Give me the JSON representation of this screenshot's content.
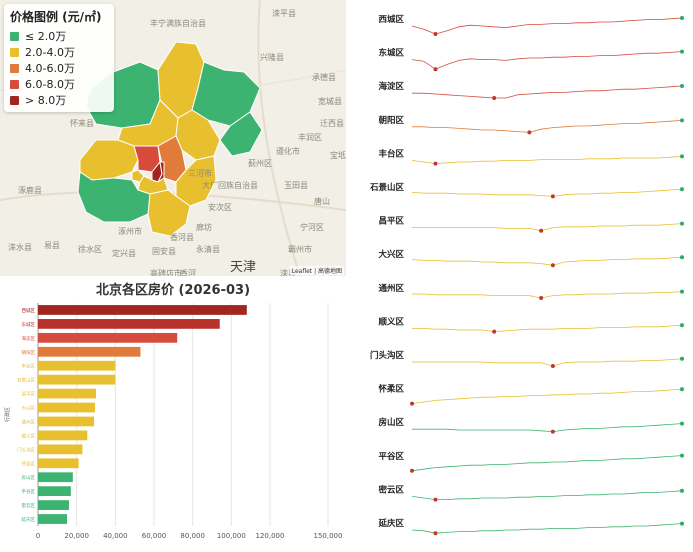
{
  "map": {
    "legend_title": "价格图例 (元/㎡)",
    "legend": [
      {
        "label": "≤ 2.0万",
        "color": "#3cb371"
      },
      {
        "label": "2.0-4.0万",
        "color": "#e8c02f"
      },
      {
        "label": "4.0-6.0万",
        "color": "#e07b39"
      },
      {
        "label": "6.0-8.0万",
        "color": "#d64b3c"
      },
      {
        "label": "> 8.0万",
        "color": "#a0261f"
      }
    ],
    "place_labels": [
      "丰宁满族自治县",
      "滦平县",
      "兴隆县",
      "承德县",
      "宽城县",
      "怀来县",
      "涿鹿县",
      "蓟州区",
      "遵化市",
      "玉田县",
      "三河市",
      "大厂回族自治县",
      "香河县",
      "廊坊",
      "天津",
      "宝坻区",
      "固安县",
      "永清县",
      "涿州市",
      "易县",
      "涞水县",
      "霸州市",
      "安次区",
      "宁河区",
      "迁西县",
      "唐山",
      "丰润区",
      "徐水区",
      "定兴县",
      "高碑店市",
      "香河",
      "滦县"
    ],
    "attribution": "Leaflet | 高德地图"
  },
  "chart_data": [
    {
      "type": "bar",
      "title": "北京各区房价 (2026-03)",
      "ylabel": "行政区",
      "xlabel": "",
      "xlim": [
        0,
        150000
      ],
      "xticks": [
        0,
        20000,
        40000,
        60000,
        80000,
        100000,
        120000,
        150000
      ],
      "xtick_labels": [
        "0",
        "20,000",
        "40,000",
        "60,000",
        "80,000",
        "100,000",
        "120,000",
        "150,000"
      ],
      "categories": [
        "西城区",
        "东城区",
        "海淀区",
        "朝阳区",
        "丰台区",
        "石景山区",
        "昌平区",
        "大兴区",
        "通州区",
        "顺义区",
        "门头沟区",
        "怀柔区",
        "房山区",
        "平谷区",
        "密云区",
        "延庆区"
      ],
      "values": [
        108000,
        94000,
        72000,
        53000,
        40000,
        40000,
        30000,
        29500,
        29000,
        25500,
        23000,
        21000,
        18000,
        17000,
        16000,
        15000
      ],
      "colors": [
        "#a0261f",
        "#b8322a",
        "#d64b3c",
        "#e07b39",
        "#e8c02f",
        "#e8c02f",
        "#e8c02f",
        "#e8c02f",
        "#e8c02f",
        "#e8c02f",
        "#e8c02f",
        "#e8c02f",
        "#3cb371",
        "#3cb371",
        "#3cb371",
        "#3cb371"
      ]
    },
    {
      "type": "line",
      "title": "",
      "series": [
        {
          "name": "西城区",
          "color": "#d64b3c",
          "values": [
            50,
            46,
            40,
            44,
            49,
            51,
            50,
            49,
            48,
            50,
            52,
            52,
            53,
            53,
            54,
            54,
            55,
            55,
            56,
            57,
            58,
            58,
            59,
            60
          ]
        },
        {
          "name": "东城区",
          "color": "#d64b3c",
          "values": [
            50,
            48,
            38,
            44,
            49,
            51,
            50,
            50,
            49,
            51,
            52,
            52,
            53,
            53,
            54,
            54,
            55,
            55,
            56,
            57,
            58,
            58,
            59,
            60
          ]
        },
        {
          "name": "海淀区",
          "color": "#d64b3c",
          "values": [
            50,
            50,
            49,
            48,
            47,
            46,
            45,
            44,
            44,
            48,
            49,
            50,
            51,
            51,
            52,
            53,
            53,
            54,
            55,
            55,
            56,
            57,
            58,
            59
          ]
        },
        {
          "name": "朝阳区",
          "color": "#e07b39",
          "values": [
            50,
            50,
            49,
            49,
            48,
            47,
            46,
            46,
            45,
            44,
            43,
            47,
            49,
            50,
            51,
            51,
            52,
            53,
            54,
            54,
            55,
            56,
            57,
            58
          ]
        },
        {
          "name": "丰台区",
          "color": "#e8c02f",
          "values": [
            50,
            48,
            46,
            47,
            48,
            48,
            49,
            49,
            50,
            50,
            50,
            51,
            51,
            51,
            51,
            52,
            52,
            52,
            53,
            53,
            53,
            53,
            54,
            55
          ]
        },
        {
          "name": "石景山区",
          "color": "#e8c02f",
          "values": [
            52,
            51,
            51,
            51,
            50,
            50,
            50,
            49,
            49,
            49,
            49,
            48,
            47,
            49,
            50,
            50,
            51,
            51,
            52,
            52,
            53,
            54,
            55,
            56
          ]
        },
        {
          "name": "昌平区",
          "color": "#e8c02f",
          "values": [
            50,
            50,
            50,
            50,
            50,
            50,
            50,
            50,
            49,
            49,
            49,
            46,
            50,
            51,
            51,
            51,
            52,
            52,
            52,
            53,
            53,
            53,
            54,
            55
          ]
        },
        {
          "name": "大兴区",
          "color": "#e8c02f",
          "values": [
            52,
            51,
            51,
            50,
            50,
            50,
            49,
            49,
            48,
            48,
            48,
            47,
            45,
            49,
            50,
            51,
            51,
            52,
            52,
            53,
            53,
            53,
            54,
            55
          ]
        },
        {
          "name": "通州区",
          "color": "#e8c02f",
          "values": [
            51,
            51,
            50,
            50,
            50,
            50,
            50,
            49,
            49,
            49,
            49,
            46,
            49,
            50,
            50,
            51,
            51,
            51,
            52,
            52,
            52,
            53,
            53,
            54
          ]
        },
        {
          "name": "顺义区",
          "color": "#e8c02f",
          "values": [
            50,
            50,
            49,
            49,
            48,
            48,
            48,
            46,
            47,
            48,
            49,
            49,
            49,
            50,
            50,
            50,
            51,
            51,
            51,
            52,
            52,
            52,
            53,
            54
          ]
        },
        {
          "name": "门头沟区",
          "color": "#e8c02f",
          "values": [
            50,
            50,
            50,
            50,
            50,
            50,
            50,
            49,
            49,
            49,
            49,
            49,
            45,
            49,
            50,
            50,
            50,
            51,
            51,
            51,
            52,
            52,
            53,
            54
          ]
        },
        {
          "name": "怀柔区",
          "color": "#e8c02f",
          "values": [
            40,
            42,
            44,
            45,
            46,
            47,
            48,
            48,
            49,
            49,
            50,
            50,
            51,
            51,
            52,
            52,
            53,
            53,
            54,
            55,
            55,
            56,
            57,
            58
          ]
        },
        {
          "name": "房山区",
          "color": "#3cb371",
          "values": [
            50,
            50,
            50,
            50,
            49,
            49,
            49,
            49,
            49,
            49,
            49,
            48,
            47,
            49,
            50,
            51,
            51,
            52,
            53,
            53,
            54,
            55,
            56,
            57
          ]
        },
        {
          "name": "平谷区",
          "color": "#3cb371",
          "values": [
            40,
            42,
            44,
            45,
            46,
            47,
            47,
            48,
            48,
            49,
            50,
            50,
            51,
            51,
            52,
            53,
            53,
            54,
            55,
            55,
            56,
            57,
            58,
            59
          ]
        },
        {
          "name": "密云区",
          "color": "#3cb371",
          "values": [
            50,
            48,
            46,
            46,
            47,
            47,
            48,
            48,
            48,
            49,
            49,
            50,
            50,
            51,
            51,
            52,
            52,
            53,
            53,
            54,
            55,
            55,
            56,
            57
          ]
        },
        {
          "name": "延庆区",
          "color": "#3cb371",
          "values": [
            50,
            49,
            46,
            47,
            48,
            48,
            49,
            49,
            50,
            50,
            51,
            51,
            52,
            52,
            52,
            53,
            53,
            54,
            54,
            55,
            55,
            56,
            57,
            58
          ]
        }
      ]
    }
  ]
}
